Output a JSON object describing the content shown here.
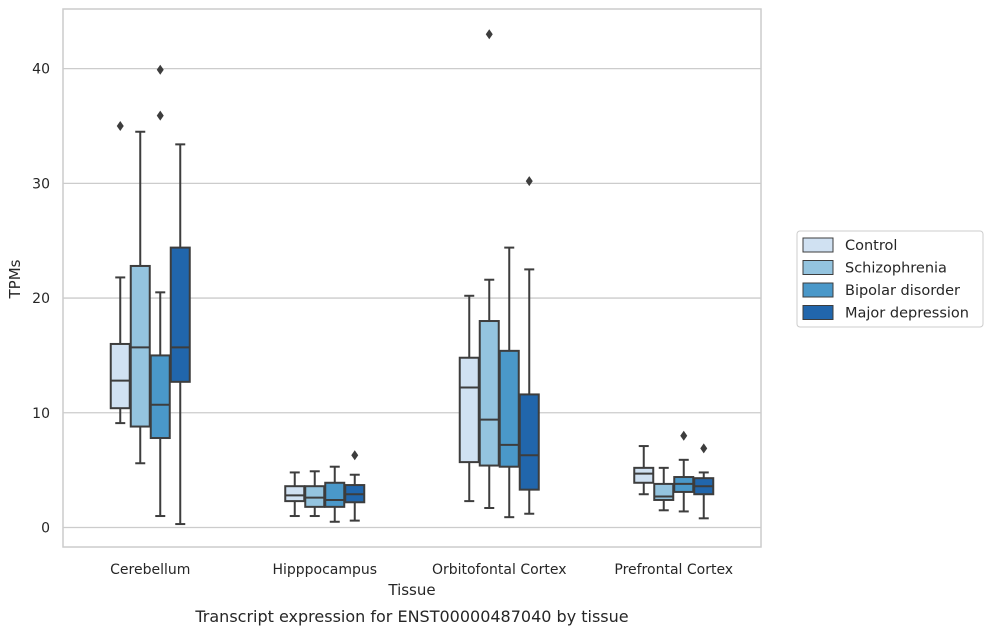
{
  "chart_data": {
    "type": "box",
    "xlabel": "Tissue",
    "ylabel": "TPMs",
    "caption": "Transcript expression for ENST00000487040 by tissue",
    "categories": [
      "Cerebellum",
      "Hipppocampus",
      "Orbitofontal Cortex",
      "Prefrontal Cortex"
    ],
    "ylim": [
      -1.7,
      45.2
    ],
    "yticks": [
      0,
      10,
      20,
      30,
      40
    ],
    "grid": "horizontal",
    "legend_position": "right",
    "series": [
      {
        "name": "Control",
        "color": "#d0e1f2",
        "boxes": [
          {
            "whisker_low": 9.1,
            "q1": 10.4,
            "median": 12.8,
            "q3": 16.0,
            "whisker_high": 21.8,
            "outliers": [
              35.0
            ]
          },
          {
            "whisker_low": 1.0,
            "q1": 2.3,
            "median": 2.8,
            "q3": 3.6,
            "whisker_high": 4.8,
            "outliers": []
          },
          {
            "whisker_low": 2.3,
            "q1": 5.7,
            "median": 12.2,
            "q3": 14.8,
            "whisker_high": 20.2,
            "outliers": []
          },
          {
            "whisker_low": 2.9,
            "q1": 3.9,
            "median": 4.7,
            "q3": 5.2,
            "whisker_high": 7.1,
            "outliers": []
          }
        ]
      },
      {
        "name": "Schizophrenia",
        "color": "#94c4df",
        "boxes": [
          {
            "whisker_low": 5.6,
            "q1": 8.8,
            "median": 15.7,
            "q3": 22.8,
            "whisker_high": 34.5,
            "outliers": []
          },
          {
            "whisker_low": 1.0,
            "q1": 1.8,
            "median": 2.6,
            "q3": 3.6,
            "whisker_high": 4.9,
            "outliers": []
          },
          {
            "whisker_low": 1.7,
            "q1": 5.4,
            "median": 9.4,
            "q3": 18.0,
            "whisker_high": 21.6,
            "outliers": [
              43.0
            ]
          },
          {
            "whisker_low": 1.5,
            "q1": 2.4,
            "median": 2.7,
            "q3": 3.8,
            "whisker_high": 5.2,
            "outliers": []
          }
        ]
      },
      {
        "name": "Bipolar disorder",
        "color": "#4a98c9",
        "boxes": [
          {
            "whisker_low": 1.0,
            "q1": 7.8,
            "median": 10.7,
            "q3": 15.0,
            "whisker_high": 20.5,
            "outliers": [
              35.9,
              39.9
            ]
          },
          {
            "whisker_low": 0.5,
            "q1": 1.8,
            "median": 2.4,
            "q3": 3.9,
            "whisker_high": 5.3,
            "outliers": []
          },
          {
            "whisker_low": 0.9,
            "q1": 5.3,
            "median": 7.2,
            "q3": 15.4,
            "whisker_high": 24.4,
            "outliers": []
          },
          {
            "whisker_low": 1.4,
            "q1": 3.1,
            "median": 3.8,
            "q3": 4.4,
            "whisker_high": 5.9,
            "outliers": [
              8.0
            ]
          }
        ]
      },
      {
        "name": "Major depression",
        "color": "#2166ac",
        "boxes": [
          {
            "whisker_low": 0.3,
            "q1": 12.7,
            "median": 15.7,
            "q3": 24.4,
            "whisker_high": 33.4,
            "outliers": []
          },
          {
            "whisker_low": 0.6,
            "q1": 2.2,
            "median": 2.9,
            "q3": 3.7,
            "whisker_high": 4.6,
            "outliers": [
              6.3
            ]
          },
          {
            "whisker_low": 1.2,
            "q1": 3.3,
            "median": 6.3,
            "q3": 11.6,
            "whisker_high": 22.5,
            "outliers": [
              30.2
            ]
          },
          {
            "whisker_low": 0.8,
            "q1": 2.9,
            "median": 3.6,
            "q3": 4.3,
            "whisker_high": 4.8,
            "outliers": [
              6.9
            ]
          }
        ]
      }
    ]
  }
}
